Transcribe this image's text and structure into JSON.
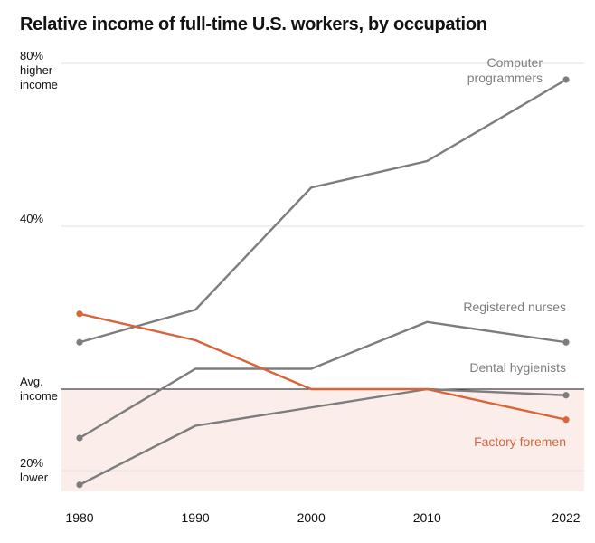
{
  "chart_data": {
    "type": "line",
    "title": "Relative income of full-time U.S. workers, by occupation",
    "x": [
      1980,
      1990,
      2000,
      2010,
      2022
    ],
    "x_tick_labels": [
      "1980",
      "1990",
      "2000",
      "2010",
      "2022"
    ],
    "ylim": [
      -25,
      84
    ],
    "y_ticks": [
      {
        "value": 80,
        "lines": [
          "80%",
          "higher",
          "income"
        ]
      },
      {
        "value": 40,
        "lines": [
          "40%"
        ]
      },
      {
        "value": 0,
        "lines": [
          "Avg.",
          "income"
        ]
      },
      {
        "value": -20,
        "lines": [
          "20%",
          "lower"
        ]
      }
    ],
    "grid": true,
    "shaded_region": {
      "from": -25,
      "to": 0,
      "color": "#fbeeea"
    },
    "series": [
      {
        "name": "Computer programmers",
        "label_lines": [
          "Computer",
          "programmers"
        ],
        "color": "#7d7d7d",
        "values": [
          11.5,
          19.5,
          49.5,
          56,
          76
        ]
      },
      {
        "name": "Registered nurses",
        "label_lines": [
          "Registered nurses"
        ],
        "color": "#7d7d7d",
        "values": [
          -12,
          5,
          5,
          16.5,
          11.5
        ]
      },
      {
        "name": "Dental hygienists",
        "label_lines": [
          "Dental hygienists"
        ],
        "color": "#7d7d7d",
        "values": [
          -23.5,
          -9,
          -4.5,
          0,
          -1.5
        ]
      },
      {
        "name": "Factory foremen",
        "label_lines": [
          "Factory foremen"
        ],
        "color": "#d9643a",
        "values": [
          18.5,
          12,
          0,
          0,
          -7.5
        ]
      }
    ]
  }
}
